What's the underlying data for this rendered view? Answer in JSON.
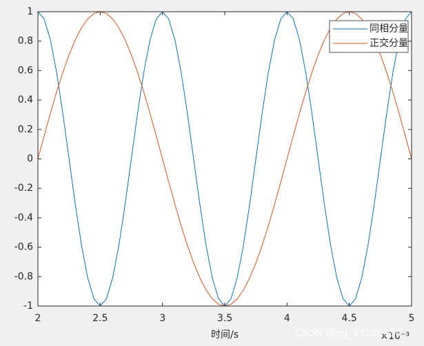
{
  "chart_data": {
    "type": "line",
    "x": [
      2,
      2.05,
      2.1,
      2.15,
      2.2,
      2.25,
      2.3,
      2.35,
      2.4,
      2.45,
      2.5,
      2.55,
      2.6,
      2.65,
      2.7,
      2.75,
      2.8,
      2.85,
      2.9,
      2.95,
      3,
      3.05,
      3.1,
      3.15,
      3.2,
      3.25,
      3.3,
      3.35,
      3.4,
      3.45,
      3.5,
      3.55,
      3.6,
      3.65,
      3.7,
      3.75,
      3.8,
      3.85,
      3.9,
      3.95,
      4,
      4.05,
      4.1,
      4.15,
      4.2,
      4.25,
      4.3,
      4.35,
      4.4,
      4.45,
      4.5,
      4.55,
      4.6,
      4.65,
      4.7,
      4.75,
      4.8,
      4.85,
      4.9,
      4.95,
      5
    ],
    "series": [
      {
        "name": "同相分量",
        "color": "#0072bd",
        "values": [
          1,
          0.951,
          0.809,
          0.588,
          0.309,
          0,
          -0.309,
          -0.588,
          -0.809,
          -0.951,
          -1,
          -0.951,
          -0.809,
          -0.588,
          -0.309,
          0,
          0.309,
          0.588,
          0.809,
          0.951,
          1,
          0.951,
          0.809,
          0.588,
          0.309,
          0,
          -0.309,
          -0.588,
          -0.809,
          -0.951,
          -1,
          -0.951,
          -0.809,
          -0.588,
          -0.309,
          0,
          0.309,
          0.588,
          0.809,
          0.951,
          1,
          0.951,
          0.809,
          0.588,
          0.309,
          0,
          -0.309,
          -0.588,
          -0.809,
          -0.951,
          -1,
          -0.951,
          -0.809,
          -0.588,
          -0.309,
          0,
          0.309,
          0.588,
          0.809,
          0.951,
          1
        ]
      },
      {
        "name": "正交分量",
        "color": "#d95319",
        "values": [
          0,
          0.156,
          0.309,
          0.454,
          0.588,
          0.707,
          0.809,
          0.891,
          0.951,
          0.988,
          1,
          0.988,
          0.951,
          0.891,
          0.809,
          0.707,
          0.588,
          0.454,
          0.309,
          0.156,
          0,
          -0.156,
          -0.309,
          -0.454,
          -0.588,
          -0.707,
          -0.809,
          -0.891,
          -0.951,
          -0.988,
          -1,
          -0.988,
          -0.951,
          -0.891,
          -0.809,
          -0.707,
          -0.588,
          -0.454,
          -0.309,
          -0.156,
          0,
          0.156,
          0.309,
          0.454,
          0.588,
          0.707,
          0.809,
          0.891,
          0.951,
          0.988,
          1,
          0.988,
          0.951,
          0.891,
          0.809,
          0.707,
          0.588,
          0.454,
          0.309,
          0.156,
          0
        ]
      }
    ],
    "xlabel": "时间/s",
    "x_exponent_label": "×10⁻³",
    "xlim": [
      2,
      5
    ],
    "xticks": [
      2,
      2.5,
      3,
      3.5,
      4,
      4.5,
      5
    ],
    "ylim": [
      -1,
      1
    ],
    "yticks": [
      -1,
      -0.8,
      -0.6,
      -0.4,
      -0.2,
      0,
      0.2,
      0.4,
      0.6,
      0.8,
      1
    ],
    "legend": "top-right",
    "watermark": "CSDN @qq_57158184"
  }
}
